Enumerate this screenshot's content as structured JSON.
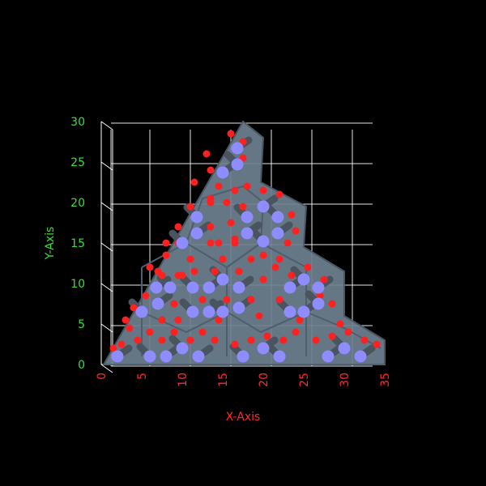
{
  "colors": {
    "background": "#000000",
    "y_axis_text": "#3cdc3c",
    "x_axis_text": "#ff2a2a",
    "grid": "#ffffff",
    "panel": "#6e8090",
    "panel_dark": "#4f5e6c",
    "atom_red": "#ff2020",
    "atom_blue": "#8f8cff",
    "bond": "#4a545e"
  },
  "chart_data": {
    "type": "3d-structure",
    "title": "",
    "xlabel": "X-Axis",
    "ylabel": "Y-Axis",
    "xlim": [
      0,
      35
    ],
    "ylim": [
      0,
      30
    ],
    "xticks": [
      "0",
      "5",
      "10",
      "15",
      "20",
      "25",
      "30",
      "35"
    ],
    "yticks": [
      "0",
      "5",
      "10",
      "15",
      "20",
      "25",
      "30"
    ],
    "grid": true,
    "legend": "none"
  }
}
